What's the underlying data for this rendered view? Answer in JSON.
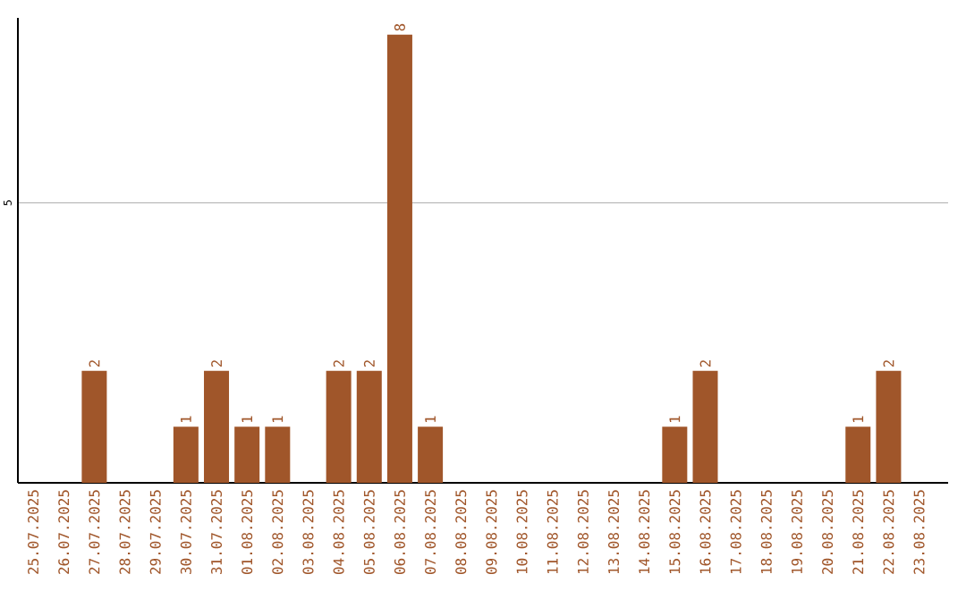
{
  "chart_data": {
    "type": "bar",
    "categories": [
      "25.07.2025",
      "26.07.2025",
      "27.07.2025",
      "28.07.2025",
      "29.07.2025",
      "30.07.2025",
      "31.07.2025",
      "01.08.2025",
      "02.08.2025",
      "03.08.2025",
      "04.08.2025",
      "05.08.2025",
      "06.08.2025",
      "07.08.2025",
      "08.08.2025",
      "09.08.2025",
      "10.08.2025",
      "11.08.2025",
      "12.08.2025",
      "13.08.2025",
      "14.08.2025",
      "15.08.2025",
      "16.08.2025",
      "17.08.2025",
      "18.08.2025",
      "19.08.2025",
      "20.08.2025",
      "21.08.2025",
      "22.08.2025",
      "23.08.2025"
    ],
    "values": [
      0,
      0,
      2,
      0,
      0,
      1,
      2,
      1,
      1,
      0,
      2,
      2,
      8,
      1,
      0,
      0,
      0,
      0,
      0,
      0,
      0,
      1,
      2,
      0,
      0,
      0,
      0,
      1,
      2,
      0
    ],
    "value_labels": [
      null,
      null,
      "2",
      null,
      null,
      "1",
      "2",
      "1",
      "1",
      null,
      "2",
      "2",
      "8",
      "1",
      null,
      null,
      null,
      null,
      null,
      null,
      null,
      "1",
      "2",
      null,
      null,
      null,
      null,
      "1",
      "2",
      null
    ],
    "color": "#a0562a",
    "ylim": [
      0,
      8.3
    ],
    "yticks": [
      5
    ],
    "grid": "y"
  }
}
